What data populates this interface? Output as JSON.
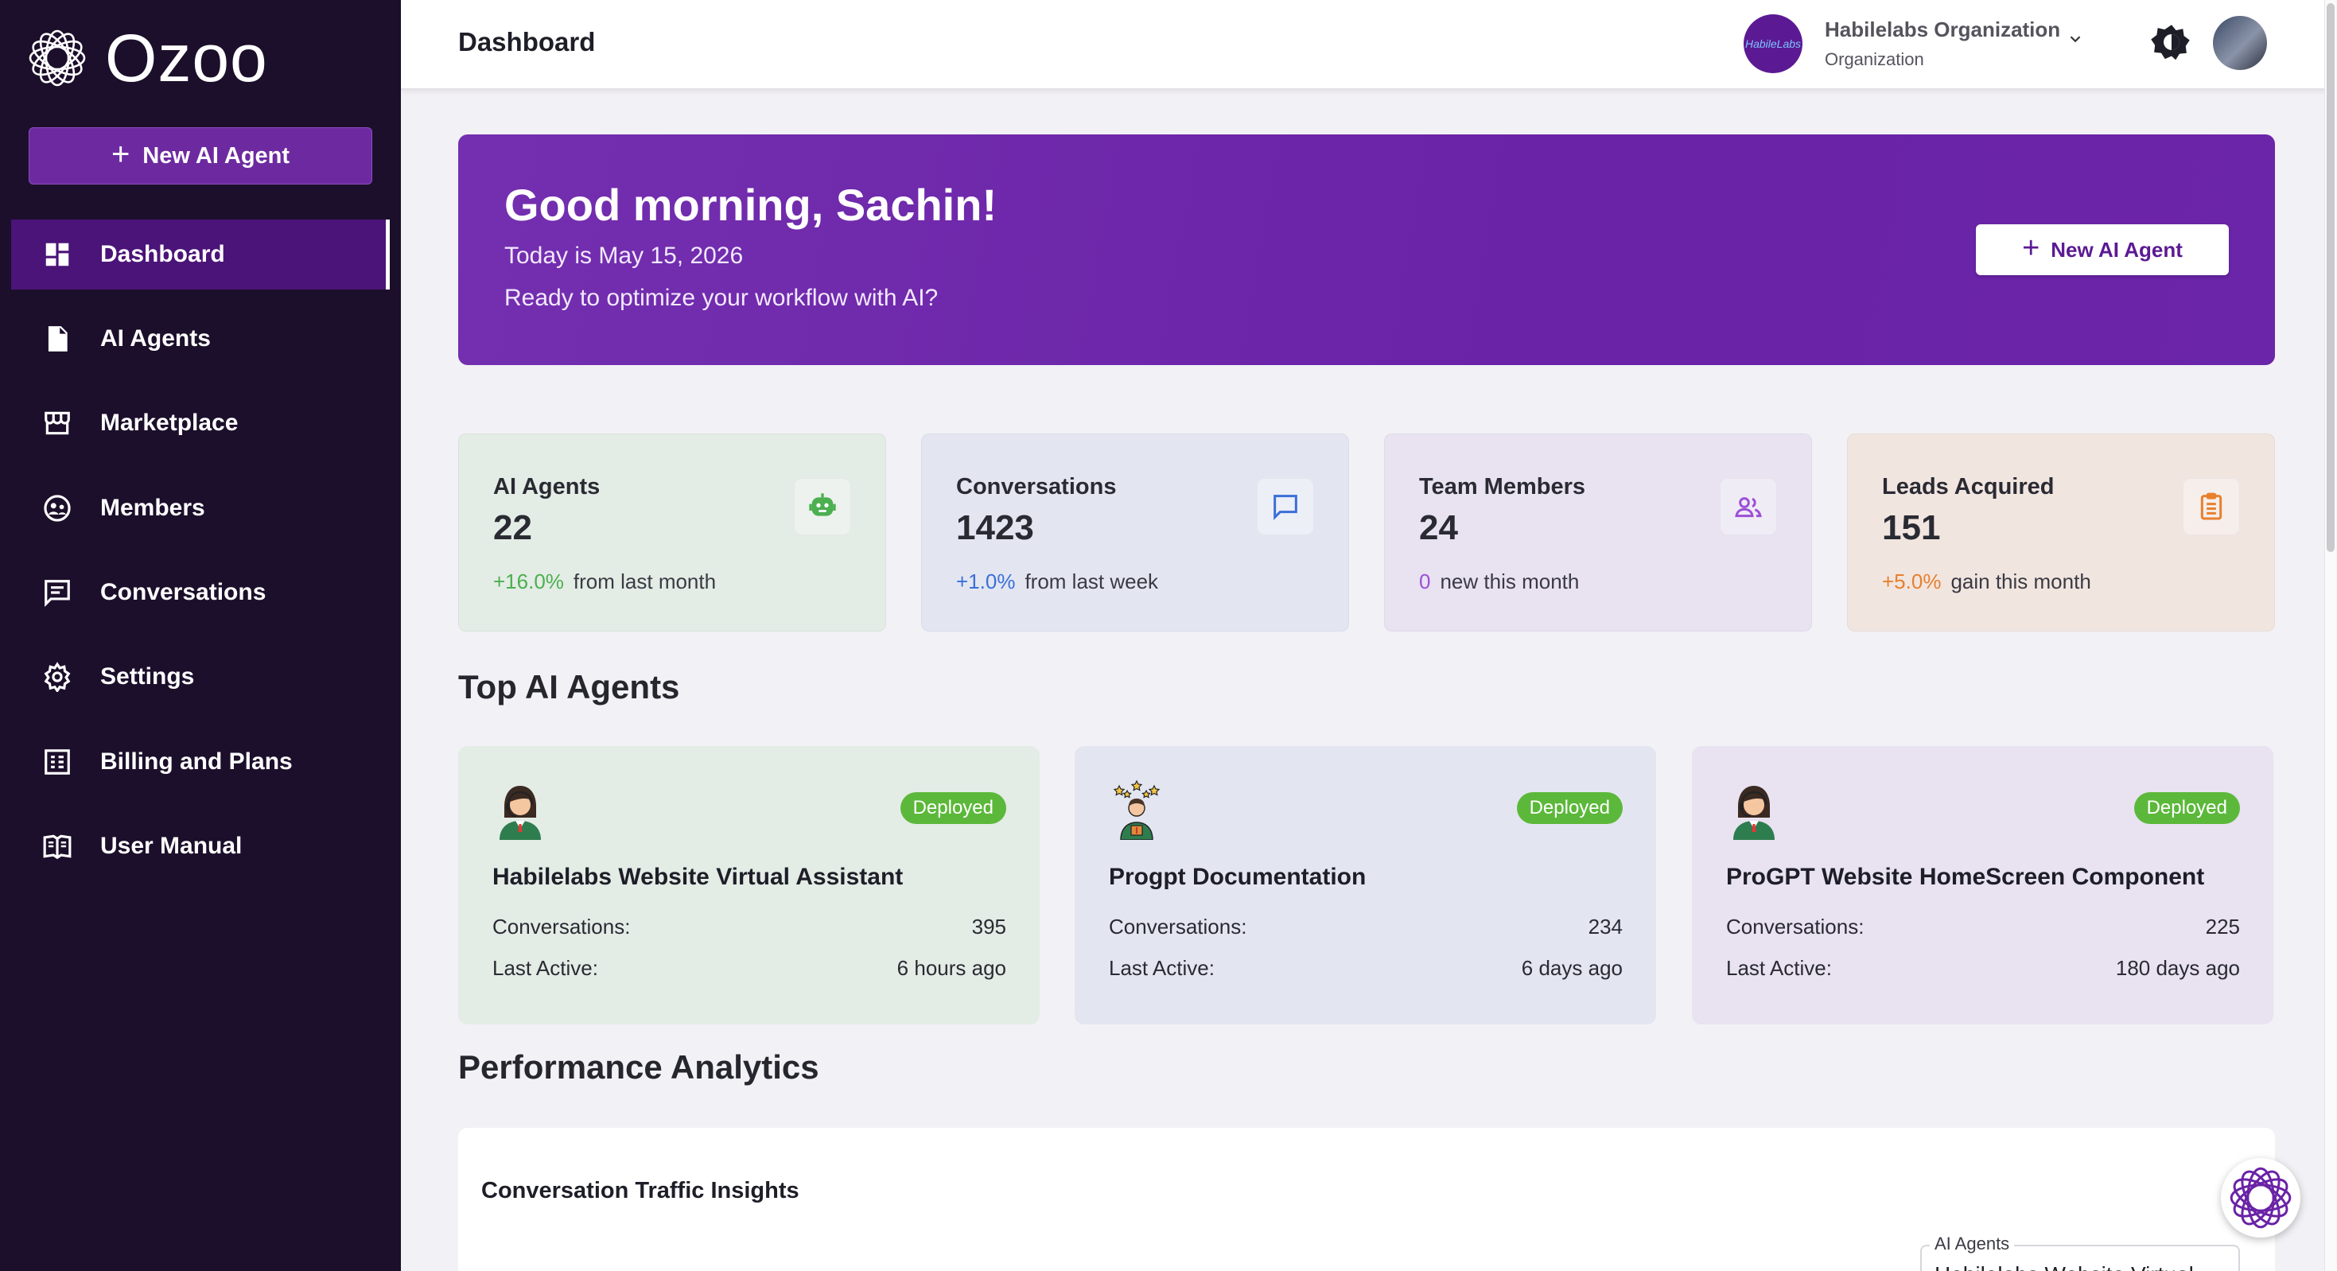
{
  "app": {
    "name": "Ozoo"
  },
  "sidebar": {
    "new_agent_label": "New AI Agent",
    "items": [
      {
        "label": "Dashboard",
        "icon": "dashboard-icon",
        "active": true
      },
      {
        "label": "AI Agents",
        "icon": "document-icon"
      },
      {
        "label": "Marketplace",
        "icon": "store-icon"
      },
      {
        "label": "Members",
        "icon": "members-icon"
      },
      {
        "label": "Conversations",
        "icon": "chat-icon"
      },
      {
        "label": "Settings",
        "icon": "gear-icon"
      },
      {
        "label": "Billing and Plans",
        "icon": "billing-icon"
      },
      {
        "label": "User Manual",
        "icon": "book-icon"
      }
    ]
  },
  "header": {
    "title": "Dashboard",
    "org_name": "Habilelabs Organization",
    "org_role": "Organization",
    "org_avatar_text": "HabileLabs"
  },
  "banner": {
    "greeting": "Good morning, Sachin!",
    "date_line": "Today is May 15, 2026",
    "subtitle": "Ready to optimize your workflow with AI?",
    "button_label": "New AI Agent"
  },
  "stats": [
    {
      "label": "AI Agents",
      "value": "22",
      "change": "+16.0%",
      "note": "from last month",
      "icon": "robot-icon",
      "color": "#4caf50",
      "bg": "#e3ece5"
    },
    {
      "label": "Conversations",
      "value": "1423",
      "change": "+1.0%",
      "note": "from last week",
      "icon": "chat-icon",
      "color": "#3b6fd8",
      "bg": "#e3e6f1"
    },
    {
      "label": "Team Members",
      "value": "24",
      "change": "0",
      "note": "new this month",
      "icon": "members-icon",
      "color": "#9b4fd6",
      "bg": "#e8e2f1"
    },
    {
      "label": "Leads Acquired",
      "value": "151",
      "change": "+5.0%",
      "note": "gain this month",
      "icon": "clipboard-icon",
      "color": "#e8802c",
      "bg": "#f1e5e0"
    }
  ],
  "sections": {
    "top_agents": "Top AI Agents",
    "performance": "Performance Analytics"
  },
  "top_agents": [
    {
      "name": "Habilelabs Website Virtual Assistant",
      "status": "Deployed",
      "conversations_label": "Conversations:",
      "conversations": "395",
      "last_active_label": "Last Active:",
      "last_active": "6 hours ago",
      "bg": "#e3ece5",
      "avatar": "woman-headset-icon"
    },
    {
      "name": "Progpt Documentation",
      "status": "Deployed",
      "conversations_label": "Conversations:",
      "conversations": "234",
      "last_active_label": "Last Active:",
      "last_active": "6 days ago",
      "bg": "#e3e6f1",
      "avatar": "man-stars-icon"
    },
    {
      "name": "ProGPT Website HomeScreen Component",
      "status": "Deployed",
      "conversations_label": "Conversations:",
      "conversations": "225",
      "last_active_label": "Last Active:",
      "last_active": "180 days ago",
      "bg": "#e8e2f1",
      "avatar": "woman-headset-icon"
    }
  ],
  "analytics": {
    "chart_title": "Conversation Traffic Insights",
    "select_label": "AI Agents",
    "select_value": "Habilelabs Website Virtual Assistant"
  },
  "colors": {
    "sidebar": "#1c0f2b",
    "accent": "#6a22a6",
    "deployed": "#5cb83a"
  }
}
